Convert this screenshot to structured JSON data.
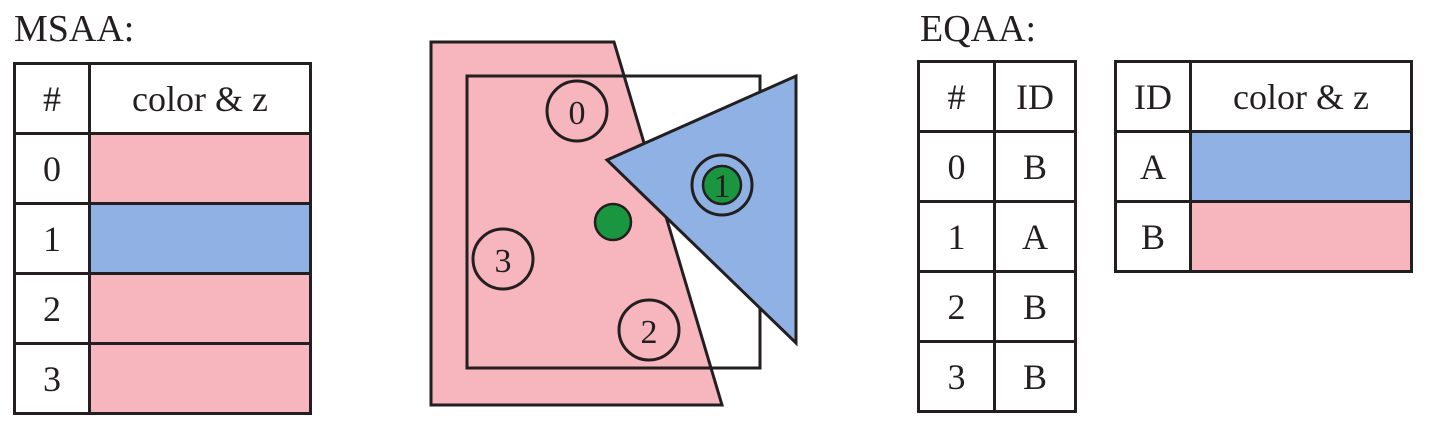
{
  "colors": {
    "pink": "#f7b6bd",
    "blue": "#8fb1e3",
    "green": "#1a9640",
    "line": "#231f20"
  },
  "msaa": {
    "heading": "MSAA:",
    "col_index": "#",
    "col_color": "color & z",
    "rows": [
      {
        "index": "0",
        "color": "pink"
      },
      {
        "index": "1",
        "color": "blue"
      },
      {
        "index": "2",
        "color": "pink"
      },
      {
        "index": "3",
        "color": "pink"
      }
    ]
  },
  "diagram": {
    "samples": [
      {
        "label": "0",
        "covered_by": "pink"
      },
      {
        "label": "1",
        "covered_by": "blue"
      },
      {
        "label": "2",
        "covered_by": "pink"
      },
      {
        "label": "3",
        "covered_by": "pink"
      }
    ]
  },
  "eqaa": {
    "heading": "EQAA:",
    "map_col_index": "#",
    "map_col_id": "ID",
    "map_rows": [
      {
        "index": "0",
        "id": "B"
      },
      {
        "index": "1",
        "id": "A"
      },
      {
        "index": "2",
        "id": "B"
      },
      {
        "index": "3",
        "id": "B"
      }
    ],
    "color_col_id": "ID",
    "color_col_color": "color & z",
    "color_rows": [
      {
        "id": "A",
        "color": "blue"
      },
      {
        "id": "B",
        "color": "pink"
      }
    ]
  }
}
